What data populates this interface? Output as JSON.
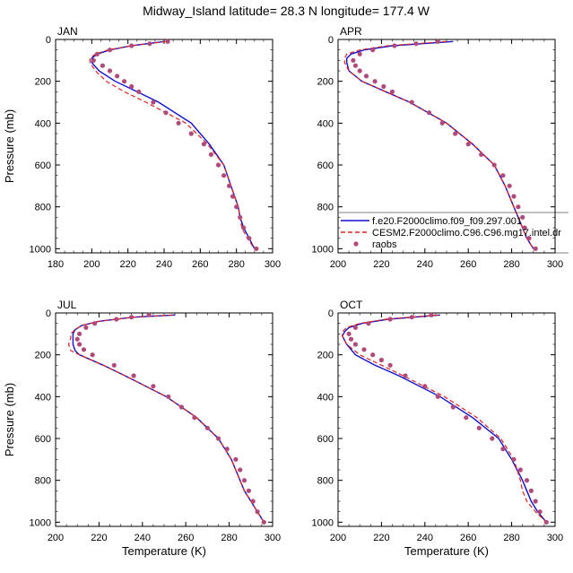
{
  "figure": {
    "title": "Midway_Island  latitude= 28.3 N longitude= 177.4 W"
  },
  "colors": {
    "model1": "#1010cc",
    "model2": "#e0201c",
    "raobs": "#b04a7a"
  },
  "legend": {
    "entries": [
      "f.e20.F2000climo.f09_f09.297.001",
      "CESM2.F2000climo.C96.C96.mg17.intel.dr",
      "raobs"
    ]
  },
  "chart_data": [
    {
      "type": "line",
      "panel": "JAN",
      "xlabel": "",
      "ylabel": "Pressure (mb)",
      "xlim": [
        180,
        300
      ],
      "ylim": [
        0,
        1020
      ],
      "y_inverted": true,
      "xticks": [
        180,
        200,
        220,
        240,
        260,
        280,
        300
      ],
      "yticks": [
        0,
        200,
        400,
        600,
        800,
        1000
      ],
      "series": [
        {
          "style": "line",
          "y": [
            10,
            30,
            50,
            70,
            90,
            110,
            150,
            200,
            250,
            300,
            400,
            500,
            600,
            700,
            800,
            850,
            900,
            950,
            1000
          ],
          "x": [
            240,
            222,
            210,
            203,
            200,
            200,
            204,
            213,
            225,
            237,
            255,
            265,
            273,
            277,
            281,
            282,
            284,
            287,
            290
          ]
        },
        {
          "style": "dash",
          "y": [
            10,
            30,
            50,
            70,
            90,
            110,
            150,
            200,
            250,
            300,
            400,
            500,
            600,
            700,
            800,
            850,
            900,
            950,
            1000
          ],
          "x": [
            241,
            222,
            209,
            202,
            199,
            199,
            202,
            208,
            218,
            230,
            252,
            264,
            273,
            277,
            281,
            282,
            283,
            286,
            290
          ]
        },
        {
          "style": "dots",
          "y": [
            10,
            20,
            30,
            50,
            70,
            100,
            125,
            150,
            175,
            200,
            225,
            250,
            300,
            350,
            400,
            450,
            500,
            550,
            600,
            650,
            700,
            750,
            800,
            850,
            900,
            950,
            1000
          ],
          "x": [
            242,
            232,
            222,
            210,
            203,
            201,
            206,
            210,
            214,
            218,
            222,
            226,
            234,
            241,
            248,
            255,
            262,
            266,
            270,
            273,
            276,
            278,
            280,
            282,
            284,
            287,
            291
          ]
        }
      ]
    },
    {
      "type": "line",
      "panel": "APR",
      "xlabel": "",
      "ylabel": "",
      "xlim": [
        200,
        300
      ],
      "ylim": [
        0,
        1020
      ],
      "y_inverted": true,
      "xticks": [
        200,
        220,
        240,
        260,
        280,
        300
      ],
      "yticks": [
        0,
        200,
        400,
        600,
        800,
        1000
      ],
      "series": [
        {
          "style": "line",
          "y": [
            10,
            30,
            50,
            70,
            90,
            110,
            150,
            200,
            250,
            300,
            400,
            500,
            600,
            700,
            800,
            850,
            900,
            950,
            1000
          ],
          "x": [
            253,
            225,
            212,
            206,
            204,
            204,
            205,
            211,
            222,
            233,
            250,
            262,
            272,
            277,
            281,
            283,
            285,
            287,
            290
          ]
        },
        {
          "style": "dash",
          "y": [
            10,
            30,
            50,
            70,
            90,
            110,
            150,
            200,
            250,
            300,
            400,
            500,
            600,
            700,
            800,
            850,
            900,
            950,
            1000
          ],
          "x": [
            250,
            223,
            210,
            204,
            203,
            203,
            205,
            211,
            222,
            233,
            250,
            262,
            272,
            277,
            281,
            283,
            285,
            287,
            290
          ]
        },
        {
          "style": "dots",
          "y": [
            10,
            20,
            30,
            50,
            70,
            100,
            125,
            150,
            175,
            200,
            225,
            250,
            300,
            350,
            400,
            450,
            500,
            550,
            600,
            650,
            700,
            750,
            800,
            850,
            900,
            950,
            1000
          ],
          "x": [
            246,
            236,
            226,
            216,
            210,
            207,
            208,
            210,
            213,
            217,
            221,
            225,
            234,
            242,
            248,
            254,
            260,
            266,
            272,
            276,
            279,
            281,
            283,
            285,
            286,
            288,
            291
          ]
        }
      ]
    },
    {
      "type": "line",
      "panel": "JUL",
      "xlabel": "Temperature (K)",
      "ylabel": "Pressure (mb)",
      "xlim": [
        200,
        300
      ],
      "ylim": [
        0,
        1020
      ],
      "y_inverted": true,
      "xticks": [
        200,
        220,
        240,
        260,
        280,
        300
      ],
      "yticks": [
        0,
        200,
        400,
        600,
        800,
        1000
      ],
      "series": [
        {
          "style": "line",
          "y": [
            10,
            20,
            40,
            60,
            80,
            100,
            120,
            150,
            180,
            200,
            250,
            300,
            400,
            500,
            600,
            700,
            800,
            850,
            900,
            950,
            1000
          ],
          "x": [
            255,
            236,
            220,
            212,
            209,
            208,
            208,
            208,
            209,
            211,
            222,
            232,
            251,
            265,
            275,
            281,
            285,
            287,
            290,
            293,
            296
          ]
        },
        {
          "style": "dash",
          "y": [
            10,
            20,
            40,
            60,
            80,
            100,
            120,
            150,
            180,
            200,
            250,
            300,
            400,
            500,
            600,
            700,
            800,
            850,
            900,
            950,
            1000
          ],
          "x": [
            254,
            236,
            220,
            212,
            209,
            207,
            207,
            206,
            207,
            211,
            222,
            232,
            251,
            265,
            275,
            281,
            285,
            287,
            290,
            293,
            296
          ]
        },
        {
          "style": "dots",
          "y": [
            10,
            20,
            30,
            50,
            70,
            100,
            125,
            150,
            175,
            200,
            250,
            300,
            350,
            400,
            450,
            500,
            550,
            600,
            650,
            700,
            750,
            800,
            850,
            900,
            950,
            1000
          ],
          "x": [
            243,
            235,
            228,
            218,
            214,
            211,
            210,
            211,
            213,
            217,
            227,
            236,
            245,
            252,
            258,
            264,
            270,
            275,
            279,
            283,
            285,
            287,
            289,
            291,
            293,
            296
          ]
        }
      ]
    },
    {
      "type": "line",
      "panel": "OCT",
      "xlabel": "Temperature (K)",
      "ylabel": "",
      "xlim": [
        200,
        300
      ],
      "ylim": [
        0,
        1020
      ],
      "y_inverted": true,
      "xticks": [
        200,
        220,
        240,
        260,
        280,
        300
      ],
      "yticks": [
        0,
        200,
        400,
        600,
        800,
        1000
      ],
      "series": [
        {
          "style": "line",
          "y": [
            10,
            30,
            50,
            70,
            90,
            110,
            150,
            200,
            250,
            300,
            400,
            500,
            600,
            700,
            800,
            850,
            900,
            950,
            1000
          ],
          "x": [
            247,
            223,
            211,
            205,
            203,
            202,
            204,
            208,
            217,
            228,
            247,
            262,
            274,
            280,
            285,
            287,
            289,
            292,
            296
          ]
        },
        {
          "style": "dash",
          "y": [
            10,
            30,
            50,
            70,
            90,
            110,
            150,
            200,
            250,
            300,
            400,
            500,
            600,
            700,
            800,
            850,
            900,
            950,
            1000
          ],
          "x": [
            246,
            222,
            210,
            204,
            202,
            202,
            204,
            210,
            220,
            230,
            249,
            264,
            275,
            281,
            284,
            285,
            287,
            291,
            296
          ]
        },
        {
          "style": "dots",
          "y": [
            10,
            20,
            30,
            50,
            70,
            100,
            125,
            150,
            175,
            200,
            225,
            250,
            300,
            350,
            400,
            450,
            500,
            550,
            600,
            650,
            700,
            750,
            800,
            850,
            900,
            950,
            1000
          ],
          "x": [
            243,
            234,
            224,
            214,
            208,
            205,
            206,
            208,
            212,
            216,
            220,
            224,
            231,
            240,
            246,
            253,
            259,
            265,
            271,
            276,
            281,
            284,
            287,
            289,
            291,
            293,
            296
          ]
        }
      ]
    }
  ]
}
